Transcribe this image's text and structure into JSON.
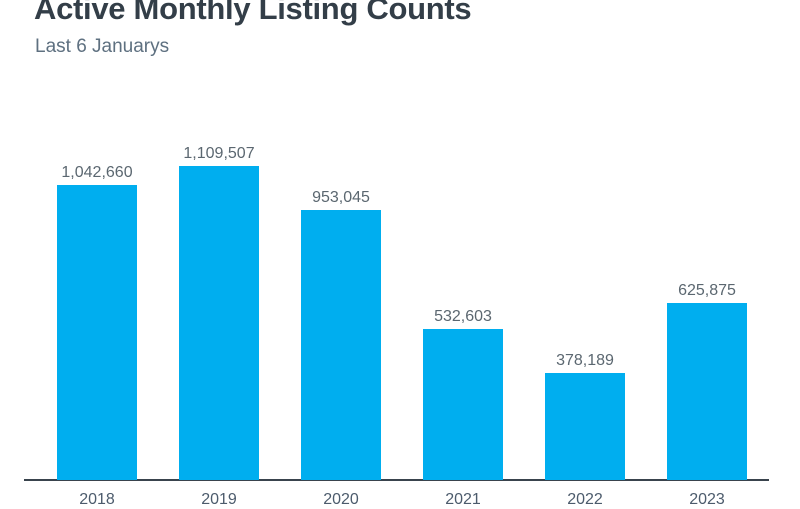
{
  "header": {
    "title": "Active Monthly Listing Counts",
    "subtitle": "Last 6 Januarys"
  },
  "chart_data": {
    "type": "bar",
    "title": "Active Monthly Listing Counts",
    "subtitle": "Last 6 Januarys",
    "categories": [
      "2018",
      "2019",
      "2020",
      "2021",
      "2022",
      "2023"
    ],
    "values": [
      1042660,
      1109507,
      953045,
      532603,
      378189,
      625875
    ],
    "value_labels": [
      "1,042,660",
      "1,109,507",
      "953,045",
      "532,603",
      "378,189",
      "625,875"
    ],
    "xlabel": "",
    "ylabel": "",
    "ylim": [
      0,
      1200000
    ],
    "grid": false,
    "legend": false,
    "colors": {
      "bar": "#00AEEF",
      "title": "#333E48",
      "subtitle": "#5E7080",
      "value_label": "#5B6770",
      "tick_label": "#4C5B6C",
      "axis_line": "#39434D"
    }
  }
}
